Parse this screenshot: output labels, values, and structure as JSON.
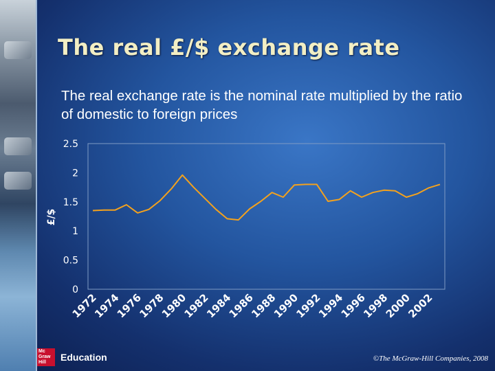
{
  "slide": {
    "title": "The real £/$ exchange rate",
    "subtitle": "The real exchange rate is the nominal rate multiplied by the ratio of domestic to foreign prices"
  },
  "chart_data": {
    "type": "line",
    "title": "",
    "xlabel": "",
    "ylabel": "£/$",
    "ylim": [
      0,
      2.5
    ],
    "yticks": [
      "2.5",
      "2",
      "1.5",
      "1",
      "0.5",
      "0"
    ],
    "xlim": [
      1972,
      2003
    ],
    "xticks": [
      "1972",
      "1974",
      "1976",
      "1978",
      "1980",
      "1982",
      "1984",
      "1986",
      "1988",
      "1990",
      "1992",
      "1994",
      "1996",
      "1998",
      "2000",
      "2002"
    ],
    "grid": false,
    "legend": "none",
    "series": [
      {
        "x": [
          1972,
          1973,
          1974,
          1975,
          1976,
          1977,
          1978,
          1979,
          1980,
          1981,
          1982,
          1983,
          1984,
          1985,
          1986,
          1987,
          1988,
          1989,
          1990,
          1991,
          1992,
          1993,
          1994,
          1995,
          1996,
          1997,
          1998,
          1999,
          2000,
          2001,
          2002,
          2003
        ],
        "y": [
          1.35,
          1.36,
          1.36,
          1.45,
          1.31,
          1.37,
          1.52,
          1.72,
          1.96,
          1.75,
          1.56,
          1.37,
          1.21,
          1.19,
          1.38,
          1.51,
          1.66,
          1.58,
          1.79,
          1.8,
          1.8,
          1.51,
          1.54,
          1.69,
          1.58,
          1.66,
          1.7,
          1.69,
          1.58,
          1.64,
          1.74,
          1.8
        ]
      }
    ],
    "line_color": "#f4a21d"
  },
  "footer": {
    "logo_small": "Mc Graw Hill",
    "logo_text": "Education",
    "copyright": "©The McGraw-Hill Companies, 2008"
  }
}
